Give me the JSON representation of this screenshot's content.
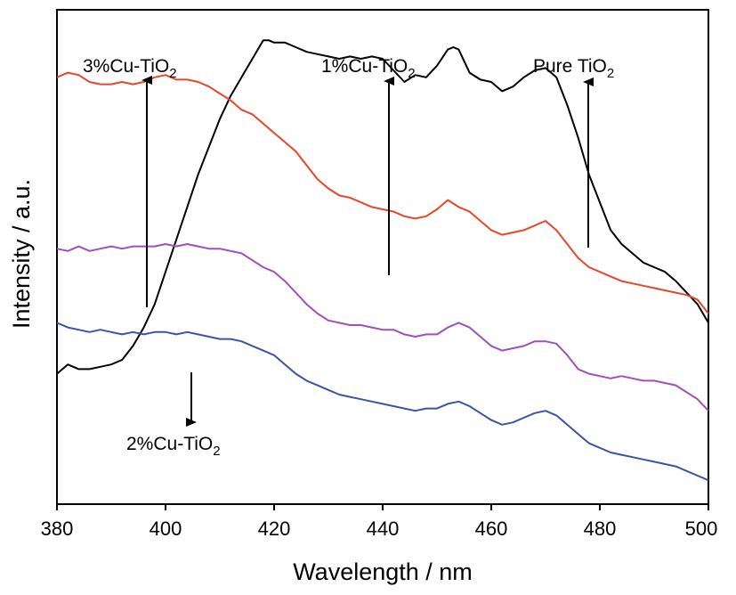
{
  "chart_data": {
    "type": "line",
    "xlabel": "Wavelength / nm",
    "ylabel": "Intensity / a.u.",
    "xlim": [
      380,
      500
    ],
    "xticks": [
      "380",
      "400",
      "420",
      "440",
      "460",
      "480",
      "500"
    ],
    "y_tick_labels": false,
    "grid": false,
    "series": [
      {
        "name": "Pure TiO2",
        "color": "#000000",
        "x": [
          380,
          382,
          384,
          386,
          388,
          390,
          392,
          394,
          396,
          398,
          400,
          402,
          404,
          406,
          408,
          410,
          412,
          414,
          416,
          418,
          419,
          420,
          422,
          424,
          426,
          428,
          430,
          432,
          434,
          436,
          438,
          440,
          442,
          444,
          446,
          448,
          450,
          452,
          453,
          454,
          456,
          458,
          460,
          462,
          464,
          466,
          468,
          470,
          472,
          474,
          476,
          478,
          480,
          482,
          484,
          486,
          488,
          490,
          492,
          494,
          496,
          498,
          500
        ],
        "y": [
          0.27,
          0.29,
          0.28,
          0.28,
          0.285,
          0.29,
          0.3,
          0.33,
          0.37,
          0.42,
          0.49,
          0.56,
          0.63,
          0.7,
          0.76,
          0.82,
          0.87,
          0.91,
          0.95,
          0.99,
          0.99,
          0.985,
          0.985,
          0.975,
          0.965,
          0.96,
          0.955,
          0.95,
          0.955,
          0.95,
          0.955,
          0.95,
          0.925,
          0.9,
          0.915,
          0.91,
          0.935,
          0.97,
          0.975,
          0.97,
          0.92,
          0.905,
          0.9,
          0.88,
          0.89,
          0.91,
          0.925,
          0.93,
          0.91,
          0.85,
          0.78,
          0.7,
          0.64,
          0.58,
          0.55,
          0.53,
          0.51,
          0.5,
          0.49,
          0.47,
          0.445,
          0.42,
          0.38
        ]
      },
      {
        "name": "1%Cu-TiO2",
        "color": "#e8462b",
        "x": [
          380,
          382,
          384,
          386,
          388,
          390,
          392,
          394,
          396,
          398,
          400,
          402,
          404,
          406,
          408,
          410,
          412,
          414,
          416,
          418,
          420,
          422,
          424,
          426,
          428,
          430,
          432,
          434,
          436,
          438,
          440,
          442,
          444,
          446,
          448,
          450,
          452,
          454,
          456,
          458,
          460,
          462,
          464,
          466,
          468,
          470,
          472,
          474,
          476,
          478,
          480,
          482,
          484,
          486,
          488,
          490,
          492,
          494,
          496,
          498,
          500
        ],
        "y": [
          0.91,
          0.92,
          0.915,
          0.9,
          0.895,
          0.895,
          0.9,
          0.895,
          0.9,
          0.91,
          0.915,
          0.905,
          0.905,
          0.9,
          0.89,
          0.875,
          0.86,
          0.84,
          0.83,
          0.81,
          0.79,
          0.77,
          0.75,
          0.72,
          0.69,
          0.67,
          0.655,
          0.65,
          0.64,
          0.63,
          0.625,
          0.62,
          0.61,
          0.605,
          0.61,
          0.625,
          0.645,
          0.63,
          0.62,
          0.6,
          0.58,
          0.57,
          0.575,
          0.58,
          0.59,
          0.6,
          0.58,
          0.55,
          0.52,
          0.5,
          0.49,
          0.48,
          0.47,
          0.465,
          0.46,
          0.455,
          0.45,
          0.445,
          0.44,
          0.43,
          0.4
        ]
      },
      {
        "name": "3%Cu-TiO2",
        "color": "#a050b8",
        "x": [
          380,
          382,
          384,
          386,
          388,
          390,
          392,
          394,
          396,
          398,
          400,
          402,
          404,
          406,
          408,
          410,
          412,
          414,
          416,
          418,
          420,
          422,
          424,
          426,
          428,
          430,
          432,
          434,
          436,
          438,
          440,
          442,
          444,
          446,
          448,
          450,
          452,
          454,
          456,
          458,
          460,
          462,
          464,
          466,
          468,
          470,
          472,
          474,
          476,
          478,
          480,
          482,
          484,
          486,
          488,
          490,
          492,
          494,
          496,
          498,
          500
        ],
        "y": [
          0.54,
          0.535,
          0.545,
          0.535,
          0.54,
          0.545,
          0.54,
          0.545,
          0.545,
          0.545,
          0.55,
          0.545,
          0.55,
          0.545,
          0.54,
          0.54,
          0.535,
          0.53,
          0.515,
          0.5,
          0.49,
          0.47,
          0.445,
          0.42,
          0.4,
          0.385,
          0.38,
          0.375,
          0.375,
          0.37,
          0.365,
          0.365,
          0.355,
          0.35,
          0.355,
          0.355,
          0.37,
          0.38,
          0.37,
          0.35,
          0.33,
          0.32,
          0.325,
          0.33,
          0.34,
          0.34,
          0.335,
          0.31,
          0.28,
          0.27,
          0.265,
          0.26,
          0.265,
          0.26,
          0.255,
          0.255,
          0.25,
          0.245,
          0.23,
          0.215,
          0.19
        ]
      },
      {
        "name": "2%Cu-TiO2",
        "color": "#3a55a5",
        "x": [
          380,
          382,
          384,
          386,
          388,
          390,
          392,
          394,
          396,
          398,
          400,
          402,
          404,
          406,
          408,
          410,
          412,
          414,
          416,
          418,
          420,
          422,
          424,
          426,
          428,
          430,
          432,
          434,
          436,
          438,
          440,
          442,
          444,
          446,
          448,
          450,
          452,
          454,
          456,
          458,
          460,
          462,
          464,
          466,
          468,
          470,
          472,
          474,
          476,
          478,
          480,
          482,
          484,
          486,
          488,
          490,
          492,
          494,
          496,
          498,
          500
        ],
        "y": [
          0.38,
          0.37,
          0.365,
          0.36,
          0.365,
          0.36,
          0.355,
          0.36,
          0.355,
          0.36,
          0.36,
          0.355,
          0.36,
          0.355,
          0.35,
          0.345,
          0.345,
          0.34,
          0.33,
          0.32,
          0.31,
          0.29,
          0.27,
          0.255,
          0.245,
          0.235,
          0.225,
          0.22,
          0.215,
          0.21,
          0.205,
          0.2,
          0.195,
          0.19,
          0.195,
          0.195,
          0.205,
          0.21,
          0.2,
          0.185,
          0.17,
          0.16,
          0.165,
          0.175,
          0.185,
          0.19,
          0.18,
          0.16,
          0.14,
          0.12,
          0.11,
          0.1,
          0.095,
          0.09,
          0.085,
          0.08,
          0.075,
          0.07,
          0.06,
          0.05,
          0.04
        ]
      }
    ],
    "annotations": [
      {
        "label_main": "3%Cu-TiO",
        "label_sub": "2",
        "arrow": "up"
      },
      {
        "label_main": "1%Cu-TiO",
        "label_sub": "2",
        "arrow": "up"
      },
      {
        "label_main": "Pure TiO",
        "label_sub": "2",
        "arrow": "up"
      },
      {
        "label_main": "2%Cu-TiO",
        "label_sub": "2",
        "arrow": "down"
      }
    ]
  }
}
